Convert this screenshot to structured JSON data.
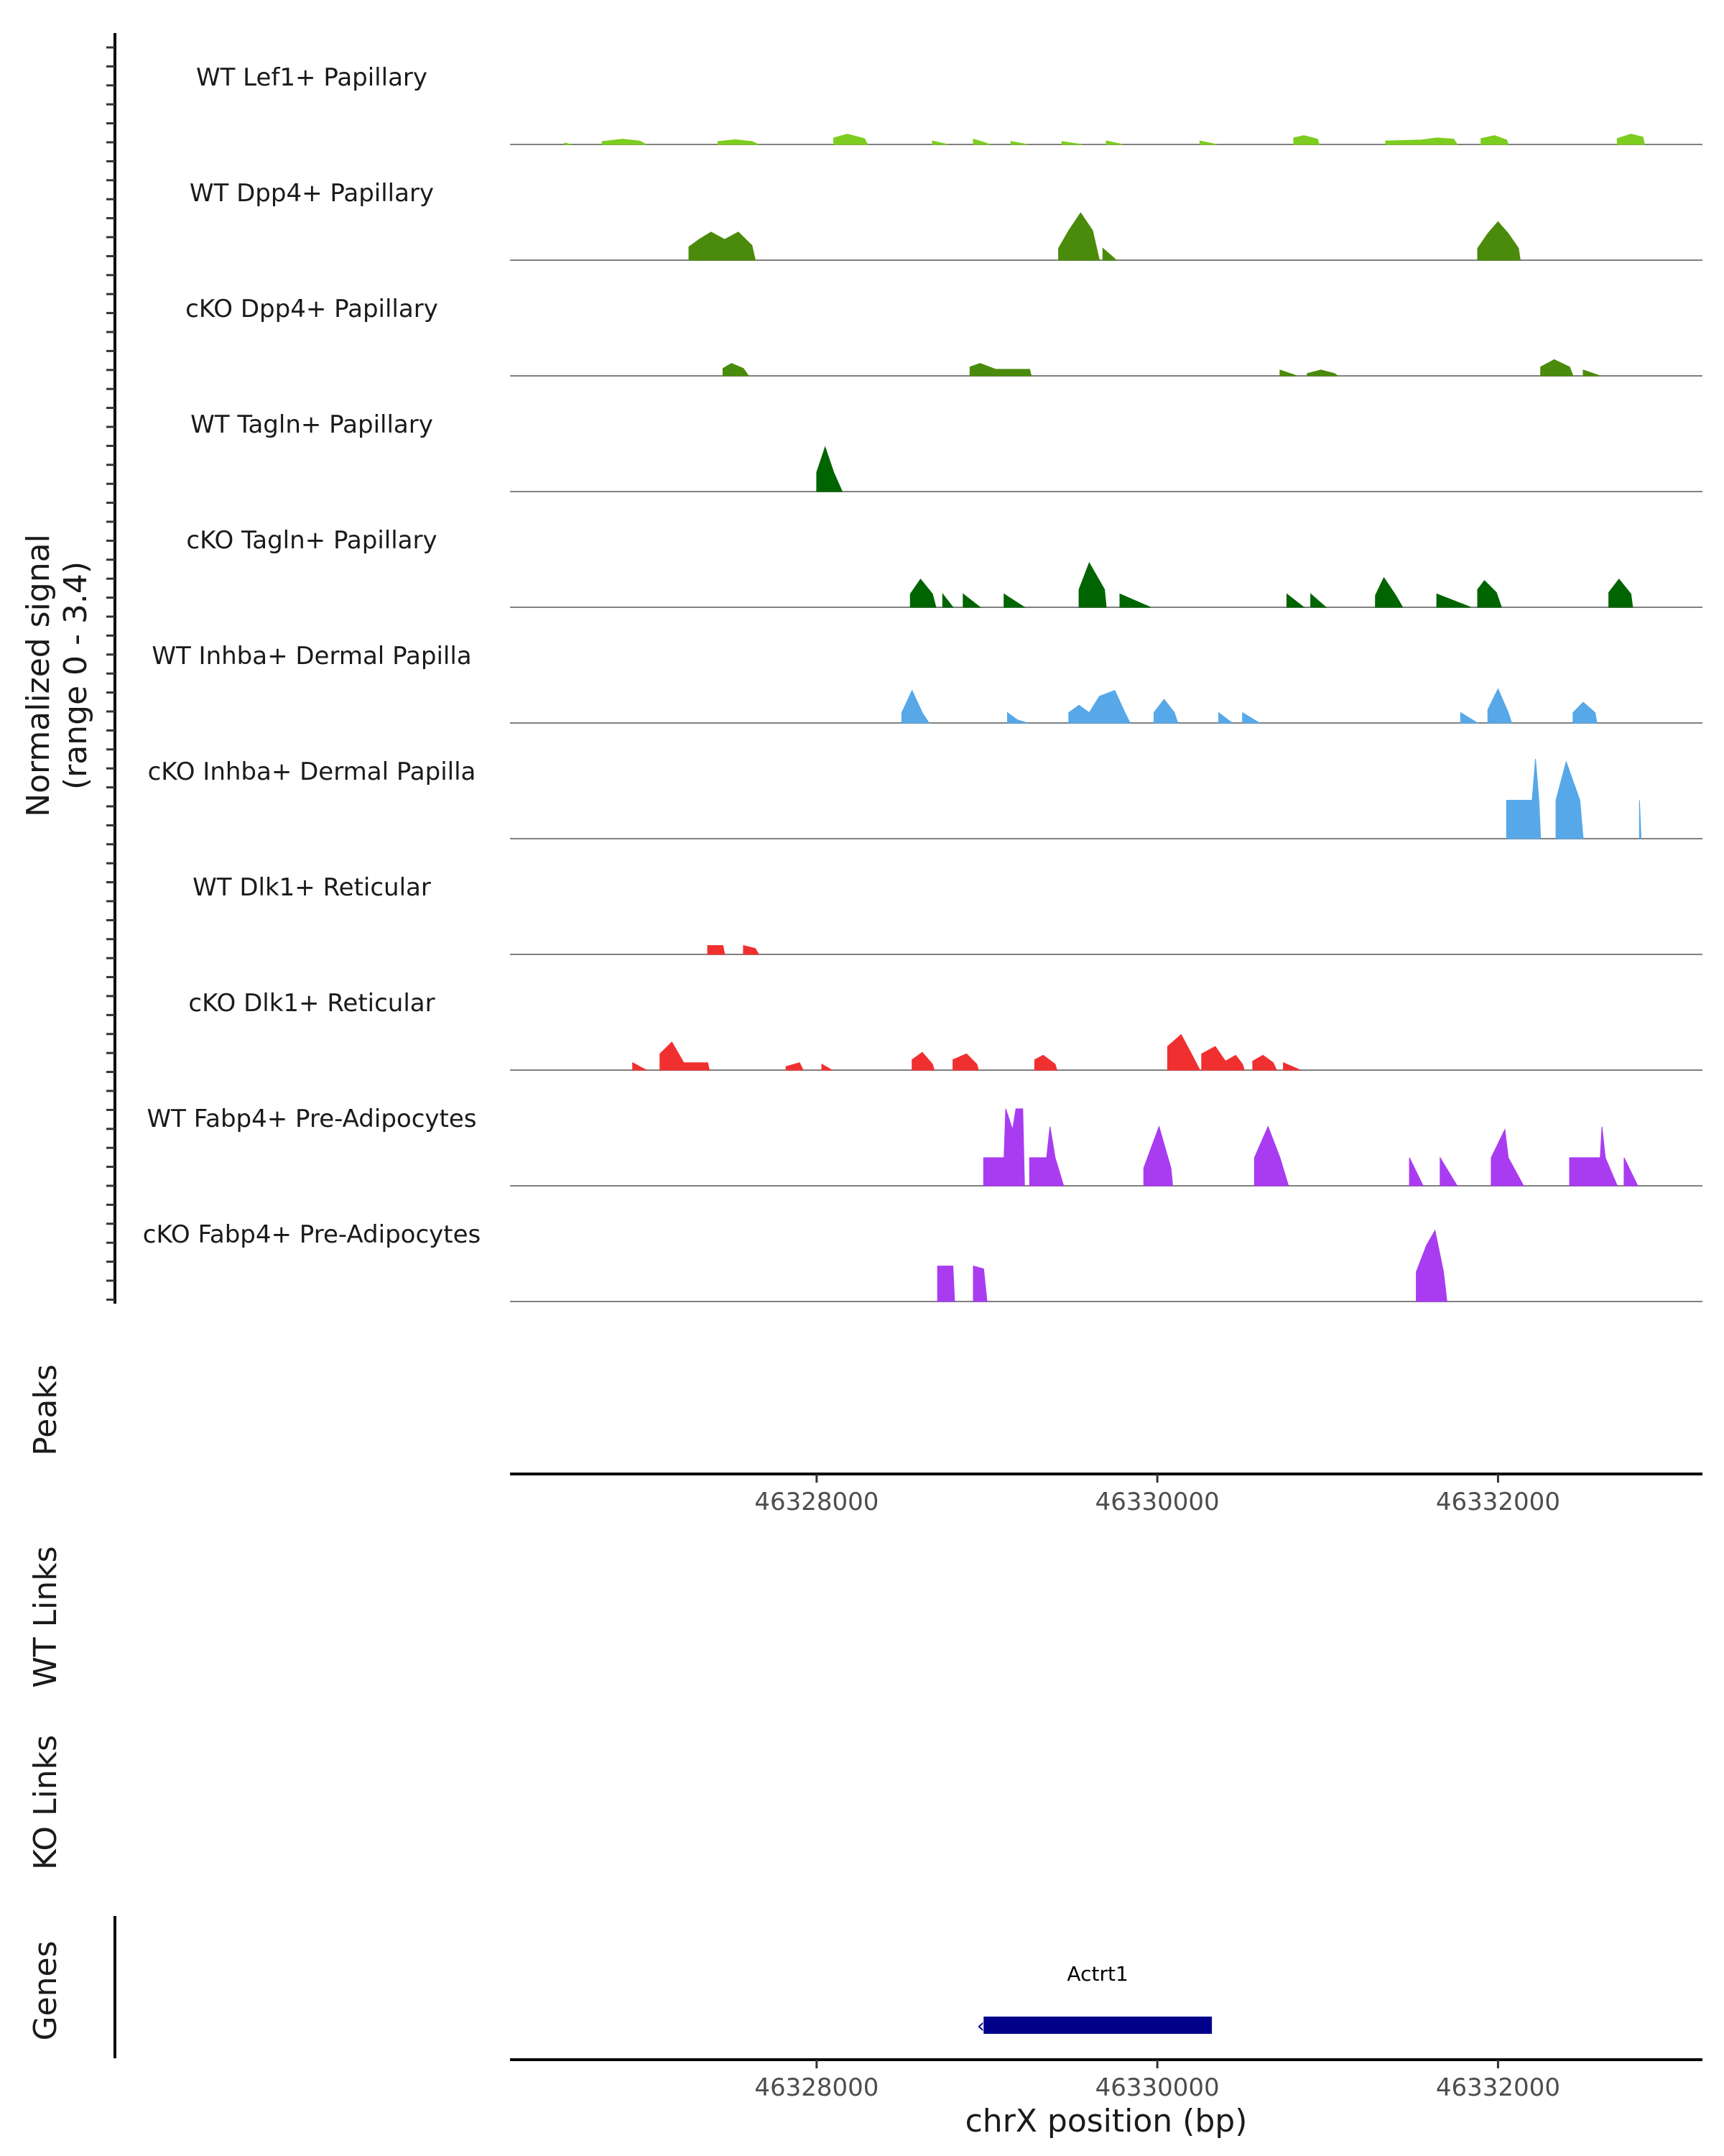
{
  "chart_data": {
    "type": "area",
    "title": "",
    "ylabel_line1": "Normalized signal",
    "ylabel_line2": "(range 0 - 3.4)",
    "yrange": [
      0,
      3.4
    ],
    "xlabel": "chrX position (bp)",
    "xlim": [
      46326200,
      46333200
    ],
    "xticks": [
      {
        "value": 46328000,
        "label": "46328000"
      },
      {
        "value": 46330000,
        "label": "46330000"
      },
      {
        "value": 46332000,
        "label": "46332000"
      }
    ],
    "panel_labels": {
      "peaks": "Peaks",
      "wt_links": "WT Links",
      "ko_links": "KO Links",
      "genes": "Genes"
    },
    "tracks": [
      {
        "name": "WT Lef1+ Papillary",
        "color": "#7ccd1f",
        "points": [
          [
            46326520,
            0.05
          ],
          [
            46326560,
            0.0
          ],
          [
            46326740,
            0.1
          ],
          [
            46326860,
            0.18
          ],
          [
            46326960,
            0.12
          ],
          [
            46327000,
            0.0
          ],
          [
            46327420,
            0.1
          ],
          [
            46327520,
            0.16
          ],
          [
            46327620,
            0.1
          ],
          [
            46327660,
            0.0
          ],
          [
            46328100,
            0.22
          ],
          [
            46328180,
            0.35
          ],
          [
            46328280,
            0.2
          ],
          [
            46328300,
            0.0
          ],
          [
            46328680,
            0.12
          ],
          [
            46328770,
            0.0
          ],
          [
            46328920,
            0.18
          ],
          [
            46329020,
            0.0
          ],
          [
            46329140,
            0.1
          ],
          [
            46329240,
            0.0
          ],
          [
            46329440,
            0.1
          ],
          [
            46329560,
            0.0
          ],
          [
            46329700,
            0.12
          ],
          [
            46329800,
            0.0
          ],
          [
            46330250,
            0.12
          ],
          [
            46330350,
            0.0
          ],
          [
            46330800,
            0.22
          ],
          [
            46330860,
            0.3
          ],
          [
            46330940,
            0.18
          ],
          [
            46330950,
            0.0
          ],
          [
            46331340,
            0.12
          ],
          [
            46331550,
            0.15
          ],
          [
            46331640,
            0.22
          ],
          [
            46331740,
            0.18
          ],
          [
            46331760,
            0.0
          ],
          [
            46331900,
            0.2
          ],
          [
            46331980,
            0.3
          ],
          [
            46332050,
            0.15
          ],
          [
            46332060,
            0.0
          ],
          [
            46332700,
            0.2
          ],
          [
            46332780,
            0.35
          ],
          [
            46332850,
            0.25
          ],
          [
            46332860,
            0.0
          ]
        ]
      },
      {
        "name": "WT Dpp4+ Papillary",
        "color": "#4b8b0b",
        "points": [
          [
            46327250,
            0.45
          ],
          [
            46327310,
            0.7
          ],
          [
            46327380,
            0.95
          ],
          [
            46327460,
            0.7
          ],
          [
            46327540,
            0.95
          ],
          [
            46327620,
            0.5
          ],
          [
            46327640,
            0.0
          ],
          [
            46329420,
            0.4
          ],
          [
            46329480,
            1.0
          ],
          [
            46329550,
            1.6
          ],
          [
            46329620,
            1.0
          ],
          [
            46329660,
            0.0
          ],
          [
            46329680,
            0.4
          ],
          [
            46329760,
            0.0
          ],
          [
            46331880,
            0.4
          ],
          [
            46331940,
            0.9
          ],
          [
            46332000,
            1.3
          ],
          [
            46332060,
            0.9
          ],
          [
            46332120,
            0.4
          ],
          [
            46332130,
            0.0
          ]
        ]
      },
      {
        "name": "cKO Dpp4+ Papillary",
        "color": "#4b8b0b",
        "points": [
          [
            46327450,
            0.25
          ],
          [
            46327500,
            0.42
          ],
          [
            46327570,
            0.25
          ],
          [
            46327600,
            0.0
          ],
          [
            46328900,
            0.3
          ],
          [
            46328960,
            0.42
          ],
          [
            46329050,
            0.22
          ],
          [
            46329250,
            0.22
          ],
          [
            46329260,
            0.0
          ],
          [
            46330720,
            0.2
          ],
          [
            46330820,
            0.0
          ],
          [
            46330880,
            0.08
          ],
          [
            46330960,
            0.2
          ],
          [
            46331040,
            0.08
          ],
          [
            46331060,
            0.0
          ],
          [
            46332250,
            0.3
          ],
          [
            46332330,
            0.55
          ],
          [
            46332420,
            0.3
          ],
          [
            46332440,
            0.0
          ],
          [
            46332500,
            0.2
          ],
          [
            46332600,
            0.0
          ]
        ]
      },
      {
        "name": "WT Tagln+ Papillary",
        "color": "#006400",
        "points": [
          [
            46328000,
            0.65
          ],
          [
            46328050,
            1.5
          ],
          [
            46328100,
            0.65
          ],
          [
            46328150,
            0.0
          ]
        ]
      },
      {
        "name": "cKO Tagln+ Papillary",
        "color": "#006400",
        "points": [
          [
            46328550,
            0.45
          ],
          [
            46328610,
            0.95
          ],
          [
            46328680,
            0.45
          ],
          [
            46328700,
            0.0
          ],
          [
            46328740,
            0.45
          ],
          [
            46328800,
            0.0
          ],
          [
            46328860,
            0.45
          ],
          [
            46328960,
            0.0
          ],
          [
            46329100,
            0.45
          ],
          [
            46329220,
            0.0
          ],
          [
            46329540,
            0.6
          ],
          [
            46329600,
            1.5
          ],
          [
            46329690,
            0.6
          ],
          [
            46329700,
            0.0
          ],
          [
            46329780,
            0.45
          ],
          [
            46329960,
            0.0
          ],
          [
            46330760,
            0.45
          ],
          [
            46330860,
            0.0
          ],
          [
            46330900,
            0.45
          ],
          [
            46330990,
            0.0
          ],
          [
            46331280,
            0.4
          ],
          [
            46331330,
            1.0
          ],
          [
            46331400,
            0.4
          ],
          [
            46331440,
            0.0
          ],
          [
            46331640,
            0.45
          ],
          [
            46331840,
            0.0
          ],
          [
            46331880,
            0.6
          ],
          [
            46331920,
            0.9
          ],
          [
            46331990,
            0.5
          ],
          [
            46332020,
            0.0
          ],
          [
            46332650,
            0.5
          ],
          [
            46332710,
            0.95
          ],
          [
            46332780,
            0.45
          ],
          [
            46332790,
            0.0
          ]
        ]
      },
      {
        "name": "WT Inhba+ Dermal Papilla",
        "color": "#56a8e8",
        "points": [
          [
            46328500,
            0.35
          ],
          [
            46328560,
            1.1
          ],
          [
            46328620,
            0.35
          ],
          [
            46328660,
            0.0
          ],
          [
            46329120,
            0.35
          ],
          [
            46329180,
            0.1
          ],
          [
            46329240,
            0.0
          ],
          [
            46329480,
            0.35
          ],
          [
            46329540,
            0.6
          ],
          [
            46329600,
            0.35
          ],
          [
            46329660,
            0.9
          ],
          [
            46329750,
            1.1
          ],
          [
            46329810,
            0.35
          ],
          [
            46329840,
            0.0
          ],
          [
            46329980,
            0.35
          ],
          [
            46330040,
            0.8
          ],
          [
            46330100,
            0.35
          ],
          [
            46330120,
            0.0
          ],
          [
            46330360,
            0.35
          ],
          [
            46330440,
            0.0
          ],
          [
            46330500,
            0.35
          ],
          [
            46330600,
            0.0
          ],
          [
            46331780,
            0.35
          ],
          [
            46331880,
            0.0
          ],
          [
            46331940,
            0.45
          ],
          [
            46332000,
            1.15
          ],
          [
            46332060,
            0.35
          ],
          [
            46332080,
            0.0
          ],
          [
            46332440,
            0.35
          ],
          [
            46332500,
            0.7
          ],
          [
            46332570,
            0.35
          ],
          [
            46332580,
            0.0
          ]
        ]
      },
      {
        "name": "cKO Inhba+ Dermal Papilla",
        "color": "#56a8e8",
        "points": [
          [
            46332050,
            1.3
          ],
          [
            46332200,
            1.3
          ],
          [
            46332220,
            2.7
          ],
          [
            46332240,
            1.3
          ],
          [
            46332250,
            0.0
          ],
          [
            46332340,
            1.3
          ],
          [
            46332400,
            2.6
          ],
          [
            46332480,
            1.3
          ],
          [
            46332500,
            0.0
          ],
          [
            46332820,
            0.0
          ],
          [
            46332830,
            1.3
          ],
          [
            46332840,
            0.0
          ]
        ]
      },
      {
        "name": "WT Dlk1+ Reticular",
        "color": "#f03030",
        "points": [
          [
            46327360,
            0.3
          ],
          [
            46327450,
            0.3
          ],
          [
            46327460,
            0.0
          ],
          [
            46327570,
            0.3
          ],
          [
            46327640,
            0.2
          ],
          [
            46327660,
            0.0
          ]
        ]
      },
      {
        "name": "cKO Dlk1+ Reticular",
        "color": "#f03030",
        "points": [
          [
            46326920,
            0.25
          ],
          [
            46327000,
            0.0
          ],
          [
            46327080,
            0.55
          ],
          [
            46327150,
            0.95
          ],
          [
            46327220,
            0.25
          ],
          [
            46327360,
            0.25
          ],
          [
            46327370,
            0.0
          ],
          [
            46327820,
            0.12
          ],
          [
            46327900,
            0.25
          ],
          [
            46327920,
            0.0
          ],
          [
            46328030,
            0.2
          ],
          [
            46328090,
            0.0
          ],
          [
            46328560,
            0.35
          ],
          [
            46328620,
            0.6
          ],
          [
            46328680,
            0.2
          ],
          [
            46328690,
            0.0
          ],
          [
            46328800,
            0.35
          ],
          [
            46328880,
            0.55
          ],
          [
            46328940,
            0.2
          ],
          [
            46328950,
            0.0
          ],
          [
            46329280,
            0.35
          ],
          [
            46329330,
            0.5
          ],
          [
            46329400,
            0.2
          ],
          [
            46329410,
            0.0
          ],
          [
            46330060,
            0.8
          ],
          [
            46330140,
            1.2
          ],
          [
            46330200,
            0.55
          ],
          [
            46330250,
            0.0
          ],
          [
            46330260,
            0.55
          ],
          [
            46330340,
            0.8
          ],
          [
            46330400,
            0.3
          ],
          [
            46330460,
            0.5
          ],
          [
            46330500,
            0.2
          ],
          [
            46330510,
            0.0
          ],
          [
            46330560,
            0.3
          ],
          [
            46330620,
            0.5
          ],
          [
            46330680,
            0.25
          ],
          [
            46330700,
            0.0
          ],
          [
            46330740,
            0.25
          ],
          [
            46330840,
            0.0
          ]
        ]
      },
      {
        "name": "WT Fabp4+ Pre-Adipocytes",
        "color": "#a93cf0",
        "points": [
          [
            46328980,
            0.95
          ],
          [
            46329100,
            0.95
          ],
          [
            46329110,
            2.6
          ],
          [
            46329150,
            1.9
          ],
          [
            46329170,
            2.6
          ],
          [
            46329210,
            2.6
          ],
          [
            46329220,
            0.0
          ],
          [
            46329250,
            0.95
          ],
          [
            46329350,
            0.95
          ],
          [
            46329370,
            2.0
          ],
          [
            46329400,
            0.95
          ],
          [
            46329450,
            0.0
          ],
          [
            46329920,
            0.6
          ],
          [
            46330010,
            2.0
          ],
          [
            46330080,
            0.6
          ],
          [
            46330090,
            0.0
          ],
          [
            46330570,
            0.95
          ],
          [
            46330650,
            2.0
          ],
          [
            46330720,
            0.95
          ],
          [
            46330770,
            0.0
          ],
          [
            46331480,
            0.95
          ],
          [
            46331560,
            0.0
          ],
          [
            46331660,
            0.95
          ],
          [
            46331760,
            0.0
          ],
          [
            46331960,
            0.95
          ],
          [
            46332040,
            1.9
          ],
          [
            46332060,
            0.95
          ],
          [
            46332150,
            0.0
          ],
          [
            46332420,
            0.95
          ],
          [
            46332600,
            0.95
          ],
          [
            46332610,
            2.0
          ],
          [
            46332630,
            0.95
          ],
          [
            46332700,
            0.0
          ],
          [
            46332740,
            0.95
          ],
          [
            46332820,
            0.0
          ]
        ]
      },
      {
        "name": "cKO Fabp4+ Pre-Adipocytes",
        "color": "#a93cf0",
        "points": [
          [
            46328710,
            1.2
          ],
          [
            46328800,
            1.2
          ],
          [
            46328810,
            0.0
          ],
          [
            46328920,
            1.2
          ],
          [
            46328980,
            1.1
          ],
          [
            46329000,
            0.0
          ],
          [
            46331520,
            1.0
          ],
          [
            46331580,
            1.9
          ],
          [
            46331630,
            2.4
          ],
          [
            46331680,
            1.0
          ],
          [
            46331700,
            0.0
          ]
        ]
      }
    ],
    "gene": {
      "name": "Actrt1",
      "start": 46328980,
      "end": 46330320,
      "strand": "minus"
    }
  }
}
